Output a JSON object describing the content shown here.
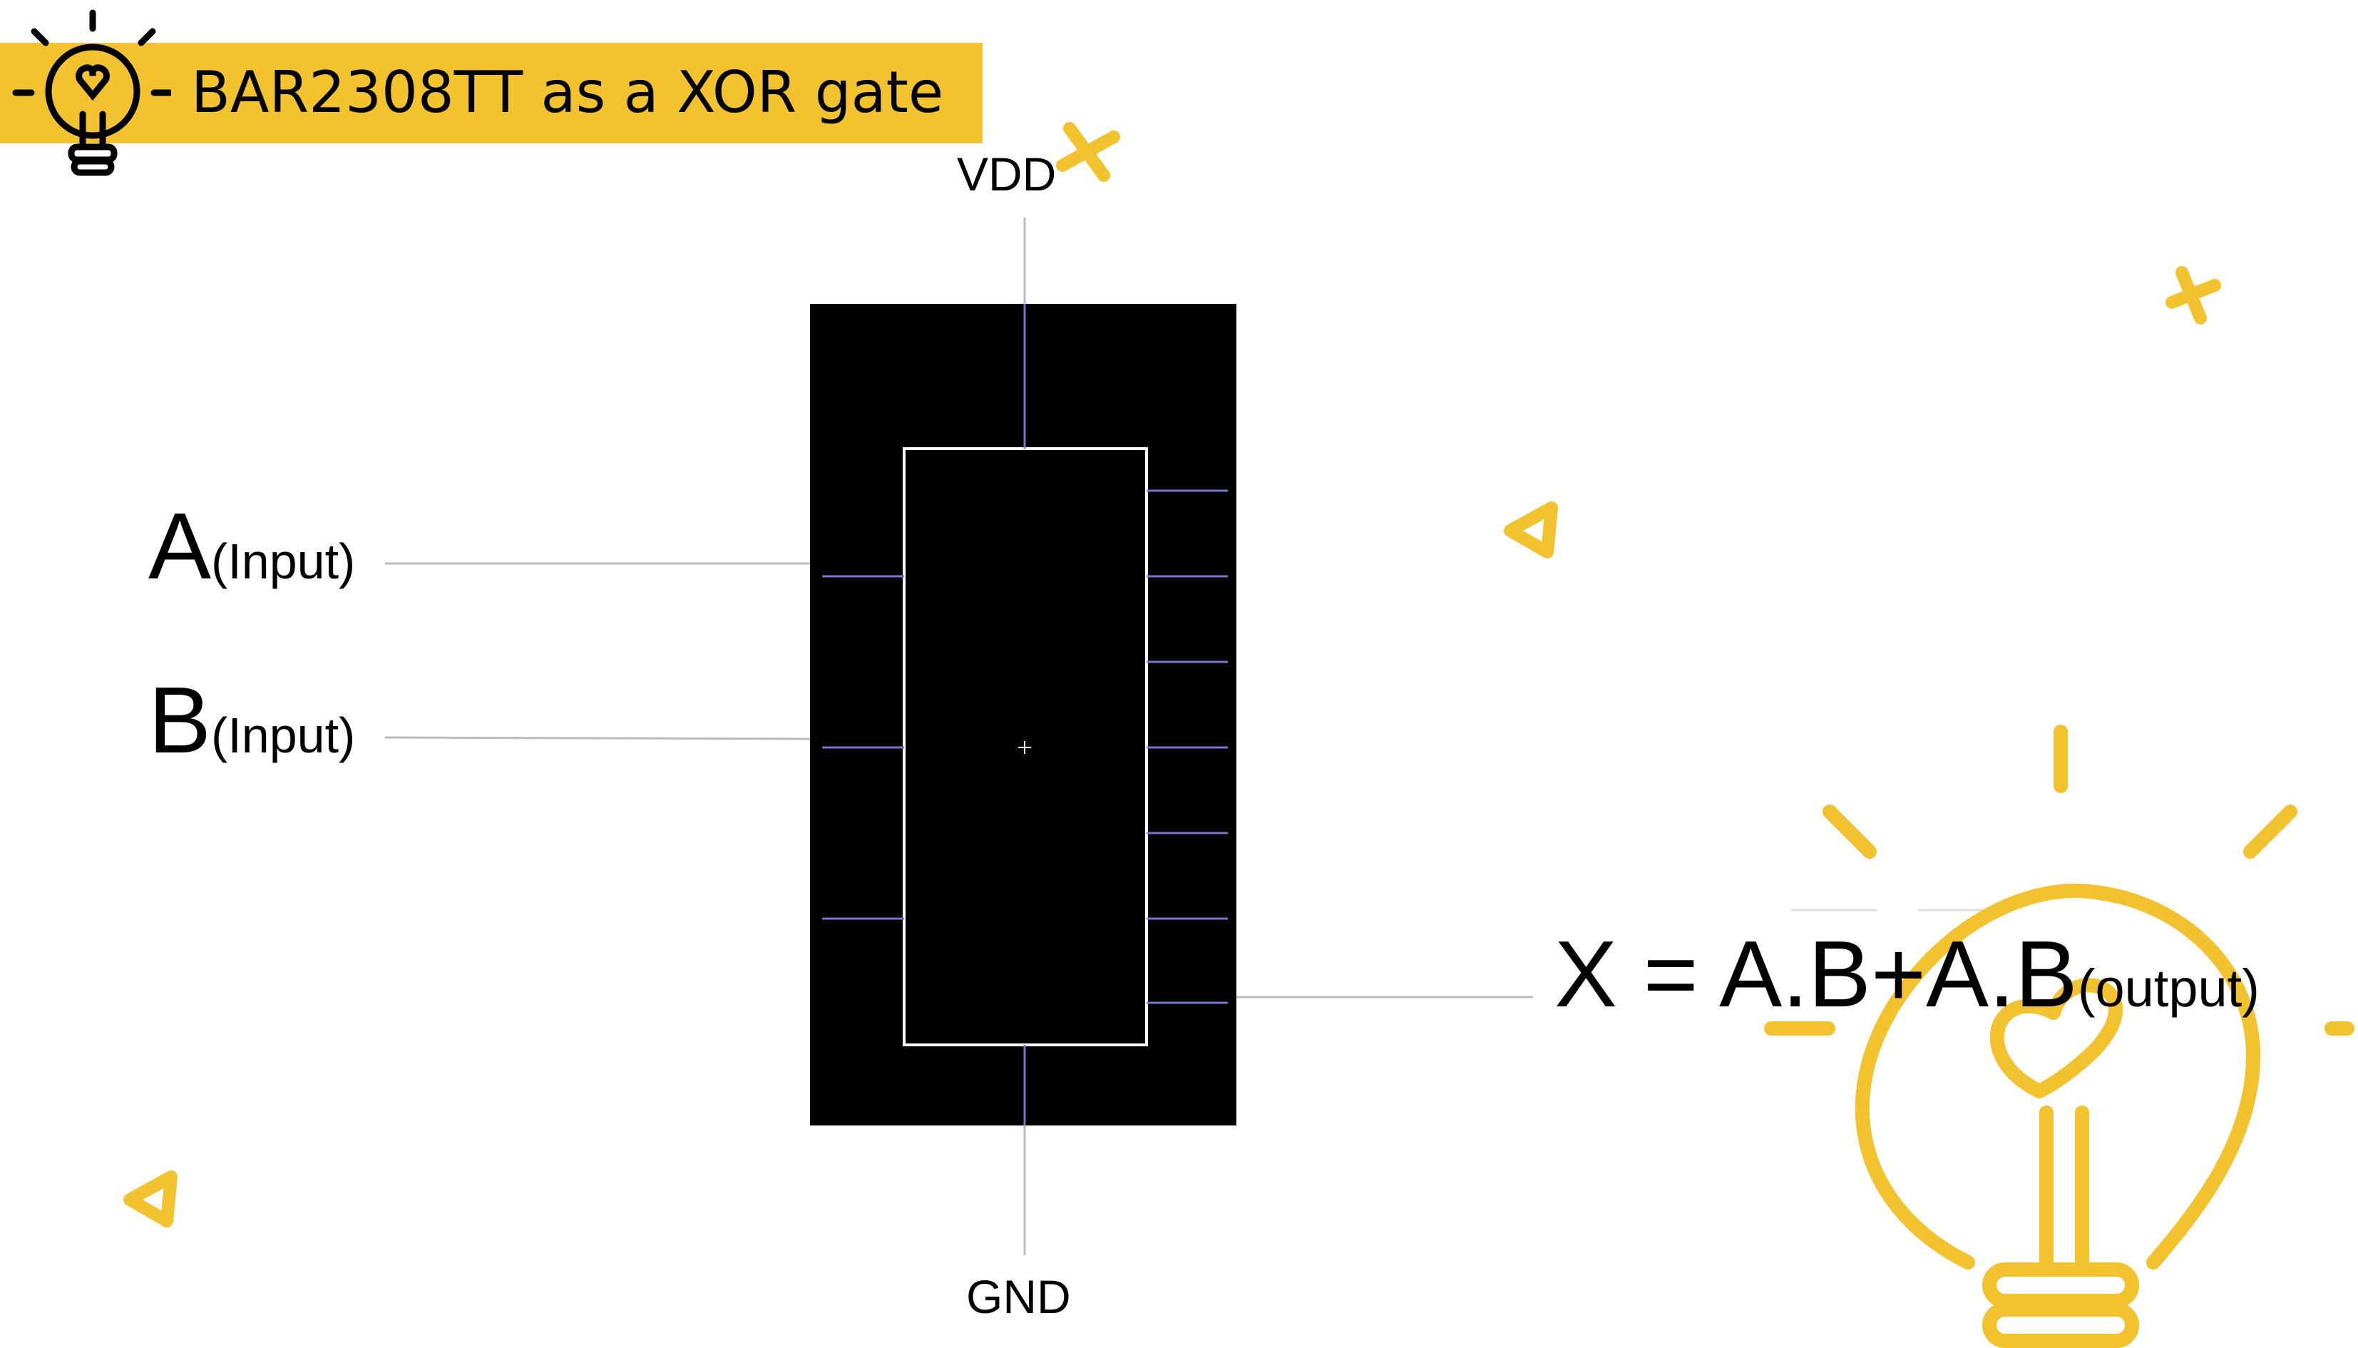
{
  "title": "BAR2308TT as a XOR gate",
  "labels": {
    "vdd": "VDD",
    "gnd": "GND",
    "input_a_letter": "A",
    "input_a_sub": "(Input)",
    "input_b_letter": "B",
    "input_b_sub": "(Input)",
    "output_expr": "X = A.B+A.B",
    "output_sub": "(output)"
  },
  "icons": {
    "title_icon": "lightbulb-icon",
    "decor_bulb": "lightbulb-icon"
  },
  "colors": {
    "accent": "#f2c22f",
    "chip_body": "#000000",
    "chip_outline": "#ffffff",
    "pin_line": "#7777cc",
    "wire": "#bbbbbb"
  }
}
